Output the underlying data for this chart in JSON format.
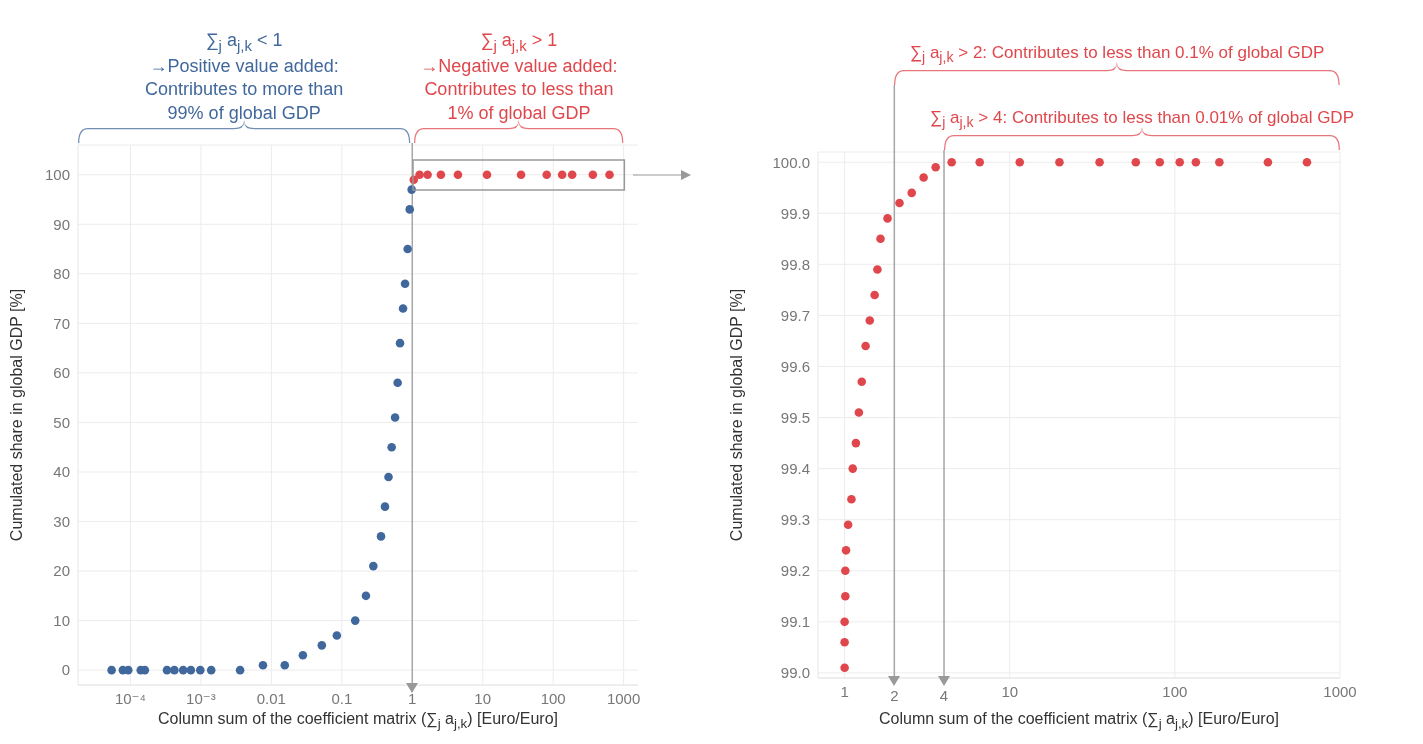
{
  "chart_data": [
    {
      "type": "scatter",
      "xlabel": "Column sum of the coefficient matrix (∑$_{j}$ a$_{j,k}$) [Euro/Euro]",
      "ylabel": "Cumulated share in global GDP [%]",
      "annotations": [
        "∑$_{j}$ a$_{j,k}$ < 1\n→Positive value added:\nContributes to more than\n99% of global GDP",
        "∑$_{j}$ a$_{j,k}$ > 1\n→Negative value added:\nContributes to less than\n1% of global GDP"
      ],
      "log": "x",
      "xlim": [
        1.8e-05,
        1600
      ],
      "xticks": [
        {
          "value": 0.0001,
          "label": "10⁻⁴"
        },
        {
          "value": 0.001,
          "label": "10⁻³"
        },
        0.01,
        0.1,
        1,
        10,
        100,
        1000
      ],
      "ylim": [
        -3,
        106
      ],
      "yticks": [
        0,
        10,
        20,
        30,
        40,
        50,
        60,
        70,
        80,
        90,
        100
      ],
      "grid": true,
      "marker": "circle",
      "ref_lines": [
        {
          "axis": "x",
          "value": 1,
          "color": "#a6a6a6"
        }
      ],
      "series": [
        {
          "color": "#41689c",
          "x": [
            5.4e-05,
            7.8e-05,
            9.3e-05,
            0.00014,
            0.00016,
            0.00033,
            0.00042,
            0.00056,
            0.00072,
            0.00098,
            0.0014,
            0.0036,
            0.0076,
            0.0155,
            0.028,
            0.052,
            0.085,
            0.155,
            0.22,
            0.28,
            0.36,
            0.41,
            0.46,
            0.51,
            0.57,
            0.62,
            0.67,
            0.74,
            0.79,
            0.86,
            0.92,
            0.98
          ],
          "values": [
            0,
            0,
            0,
            0,
            0,
            0,
            0,
            0,
            0,
            0,
            0,
            0,
            1,
            1,
            3,
            5,
            7,
            10,
            15,
            21,
            27,
            33,
            39,
            45,
            51,
            58,
            66,
            73,
            78,
            85,
            93,
            97
          ]
        },
        {
          "color": "#e0474c",
          "x": [
            1.05,
            1.27,
            1.65,
            2.55,
            4.45,
            11.5,
            35,
            81,
            134,
            186,
            366,
            631
          ],
          "values": [
            99,
            100,
            100,
            100,
            100,
            100,
            100,
            100,
            100,
            100,
            100,
            100
          ]
        }
      ]
    },
    {
      "type": "scatter",
      "xlabel": "Column sum of the coefficient matrix (∑$_{j}$ a$_{j,k}$) [Euro/Euro]",
      "ylabel": "Cumulated share in global GDP [%]",
      "annotations": [
        "∑$_{j}$ a$_{j,k}$ > 2: Contributes to less than 0.1% of global GDP",
        "∑$_{j}$ a$_{j,k}$ > 4: Contributes to less than 0.01% of global GDP"
      ],
      "log": "x",
      "xlim": [
        0.69,
        1000
      ],
      "xticks": [
        1,
        10,
        100,
        1000
      ],
      "ylim": [
        98.99,
        100.02
      ],
      "yticks": [
        {
          "value": 99,
          "label": "99.0"
        },
        99.1,
        99.2,
        99.3,
        99.4,
        99.5,
        99.6,
        99.7,
        99.8,
        99.9,
        {
          "value": 100,
          "label": "100.0"
        }
      ],
      "grid": true,
      "marker": "circle",
      "ref_lines": [
        {
          "axis": "x",
          "value": 2,
          "label": "2",
          "color": "#a6a6a6"
        },
        {
          "axis": "x",
          "value": 4,
          "label": "4",
          "color": "#a6a6a6"
        }
      ],
      "series": [
        {
          "color": "#e0474c",
          "x": [
            1.0,
            1.0,
            1.0,
            1.01,
            1.01,
            1.02,
            1.05,
            1.1,
            1.12,
            1.17,
            1.22,
            1.27,
            1.34,
            1.42,
            1.52,
            1.58,
            1.65,
            1.82,
            2.15,
            2.55,
            3.01,
            3.56,
            4.45,
            6.58,
            11.5,
            20,
            35,
            58,
            81,
            107,
            134,
            186,
            366,
            631
          ],
          "values": [
            99.01,
            99.06,
            99.1,
            99.15,
            99.2,
            99.24,
            99.29,
            99.34,
            99.4,
            99.45,
            99.51,
            99.57,
            99.64,
            99.69,
            99.74,
            99.79,
            99.85,
            99.89,
            99.92,
            99.94,
            99.97,
            99.99,
            100.0,
            100.0,
            100.0,
            100.0,
            100.0,
            100.0,
            100.0,
            100.0,
            100.0,
            100.0,
            100.0,
            100.0
          ]
        }
      ]
    }
  ]
}
